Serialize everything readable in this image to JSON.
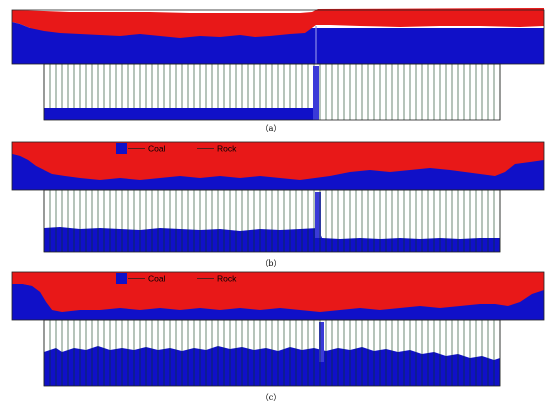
{
  "colors": {
    "coal": "#1010c8",
    "rock": "#e81818",
    "support": "#0c3a1c",
    "frame": "#222222",
    "background": "#ffffff"
  },
  "legend": {
    "coal_label": "Coal",
    "rock_label": "Rock"
  },
  "panels": [
    {
      "label": "（a）",
      "show_legend": false
    },
    {
      "label": "（b）",
      "show_legend": true
    },
    {
      "label": "（c）",
      "show_legend": true
    }
  ]
}
